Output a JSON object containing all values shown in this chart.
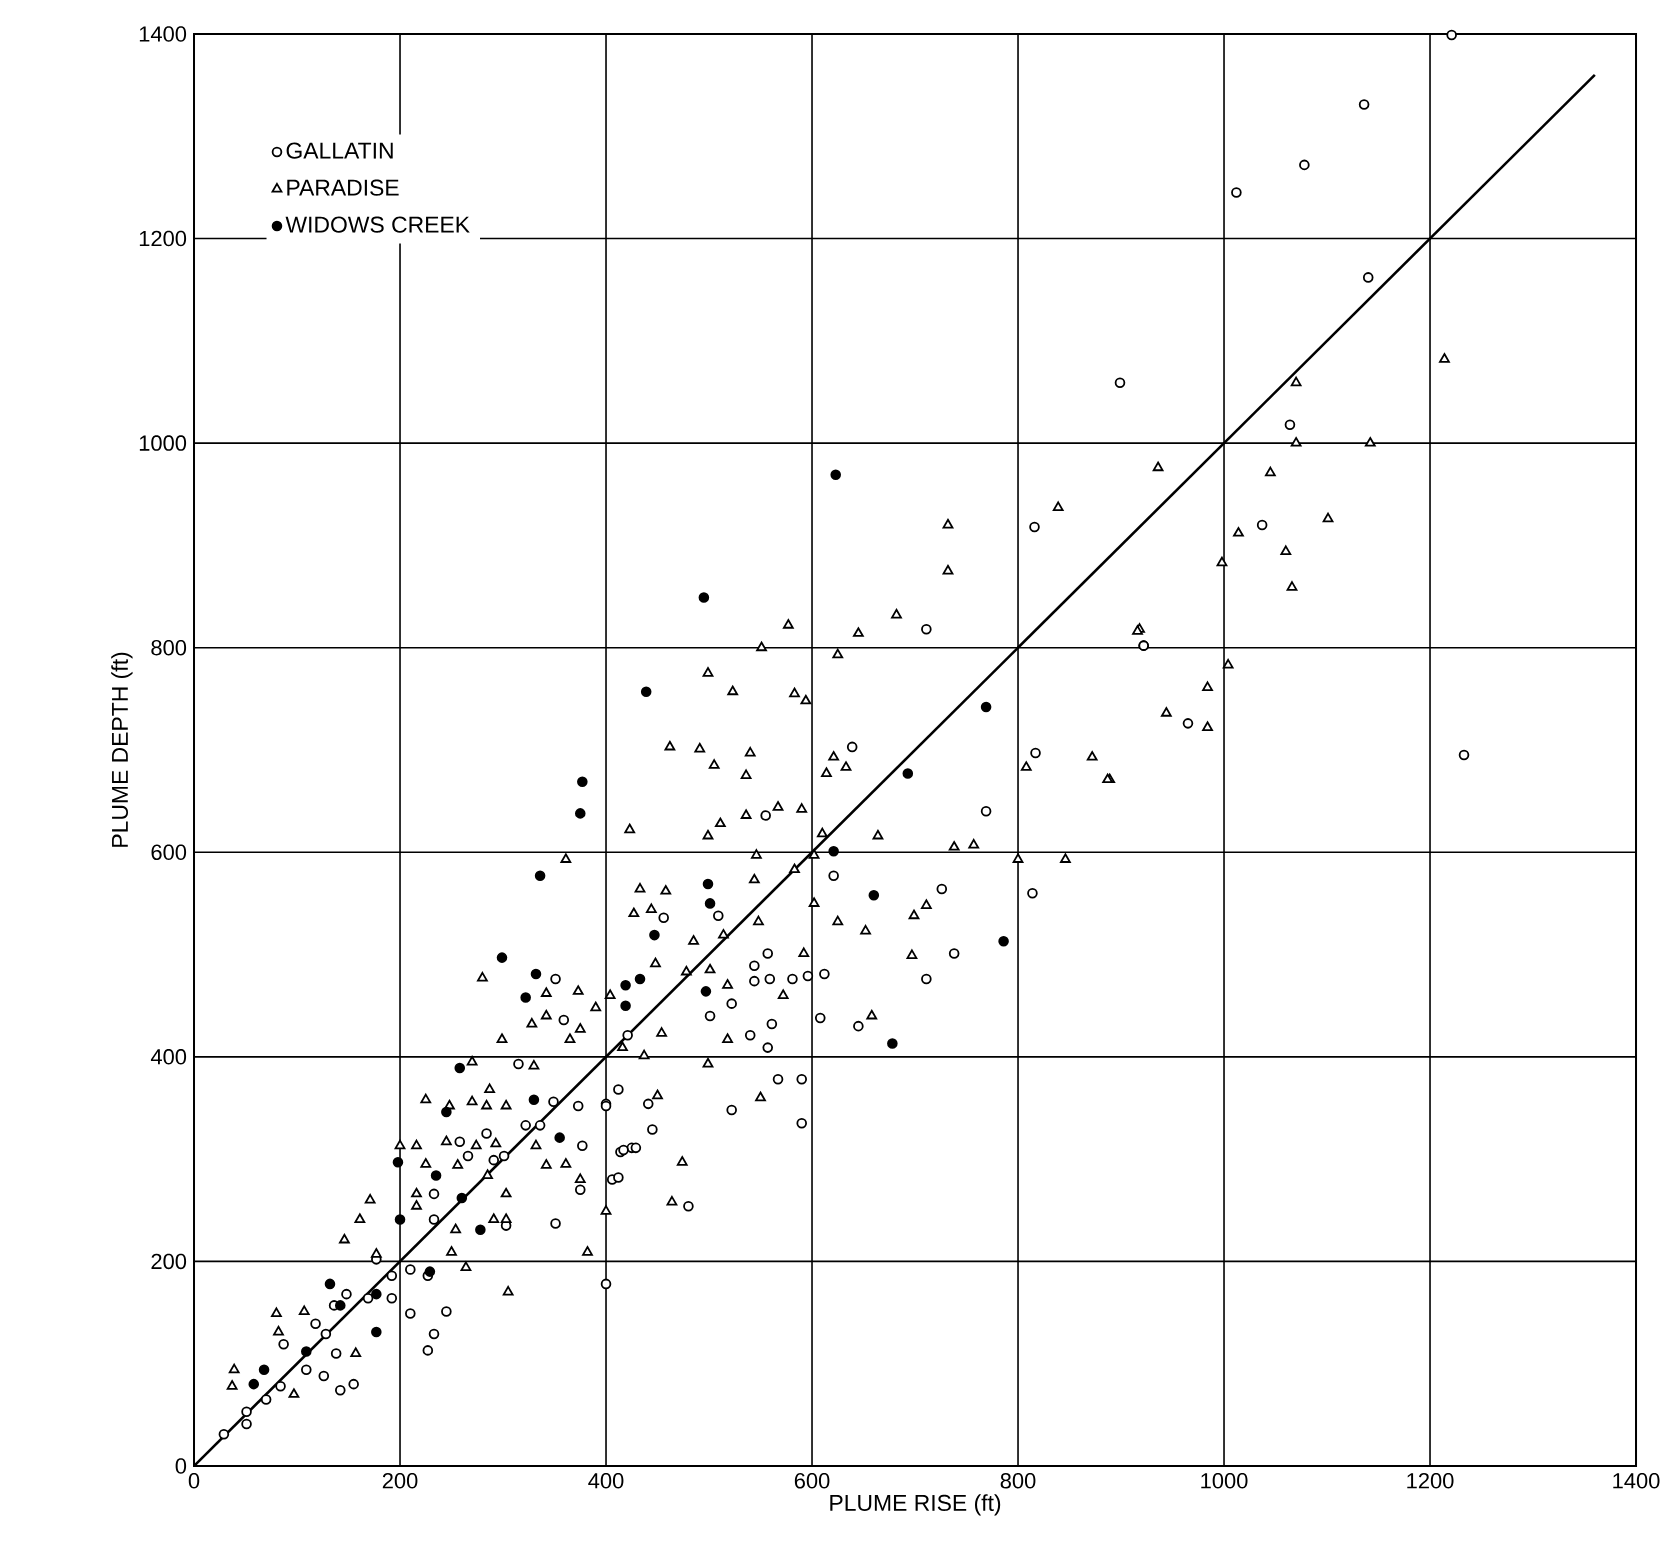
{
  "chart_data": {
    "type": "scatter",
    "xlabel": "PLUME RISE (ft)",
    "ylabel": "PLUME DEPTH (ft)",
    "xlim": [
      0,
      1400
    ],
    "ylim": [
      0,
      1400
    ],
    "xticks": [
      0,
      200,
      400,
      600,
      800,
      1000,
      1200,
      1400
    ],
    "yticks": [
      0,
      200,
      400,
      600,
      800,
      1000,
      1200,
      1400
    ],
    "grid": true,
    "legend": "top left",
    "series": [
      {
        "name": "GALLATIN",
        "color": "#ffffff",
        "marker": "circle",
        "x": [
          1221,
          1136,
          1078,
          1012,
          1140,
          899,
          1064,
          1037,
          922,
          965,
          1233,
          816,
          711,
          639,
          817,
          922,
          555,
          769,
          621,
          726,
          814,
          456,
          509,
          557,
          738,
          544,
          544,
          559,
          581,
          596,
          612,
          711,
          522,
          501,
          561,
          608,
          645,
          540,
          421,
          557,
          567,
          590,
          590,
          412,
          400,
          441,
          445,
          522,
          414,
          425,
          406,
          480,
          400,
          351,
          359,
          315,
          349,
          322,
          336,
          373,
          400,
          291,
          266,
          233,
          233,
          284,
          301,
          258,
          417,
          429,
          412,
          377,
          375,
          351,
          303,
          177,
          192,
          210,
          227,
          245,
          233,
          227,
          210,
          192,
          169,
          148,
          136,
          118,
          128,
          138,
          155,
          142,
          126,
          109,
          84,
          70,
          51,
          51,
          29,
          87
        ],
        "values": [
          1399,
          1331,
          1272,
          1245,
          1162,
          1059,
          1018,
          920,
          802,
          726,
          695,
          918,
          818,
          703,
          697,
          802,
          636,
          640,
          577,
          564,
          560,
          536,
          538,
          501,
          501,
          489,
          474,
          476,
          476,
          479,
          481,
          476,
          452,
          440,
          432,
          438,
          430,
          421,
          421,
          409,
          378,
          378,
          335,
          368,
          354,
          354,
          329,
          348,
          307,
          311,
          280,
          254,
          178,
          476,
          436,
          393,
          356,
          333,
          333,
          352,
          352,
          299,
          303,
          266,
          241,
          325,
          303,
          317,
          309,
          311,
          282,
          313,
          270,
          237,
          235,
          202,
          186,
          192,
          186,
          151,
          129,
          113,
          149,
          164,
          164,
          168,
          157,
          139,
          129,
          110,
          80,
          74,
          88,
          94,
          78,
          65,
          53,
          41,
          31,
          119
        ]
      },
      {
        "name": "PARADISE",
        "color": "#ffffff",
        "marker": "triangle",
        "x": [
          1070,
          1070,
          1142,
          1045,
          1214,
          1101,
          1014,
          1060,
          998,
          1066,
          936,
          918,
          1004,
          984,
          944,
          984,
          889,
          732,
          732,
          839,
          577,
          551,
          682,
          645,
          625,
          499,
          523,
          583,
          594,
          462,
          491,
          505,
          540,
          536,
          621,
          614,
          633,
          808,
          872,
          887,
          916,
          423,
          499,
          511,
          536,
          567,
          590,
          610,
          664,
          738,
          757,
          800,
          846,
          546,
          602,
          583,
          544,
          433,
          458,
          427,
          444,
          602,
          548,
          625,
          652,
          699,
          711,
          485,
          514,
          448,
          478,
          501,
          592,
          697,
          518,
          572,
          404,
          658,
          454,
          518,
          416,
          437,
          499,
          450,
          550,
          474,
          464,
          400,
          361,
          280,
          342,
          373,
          328,
          342,
          375,
          365,
          390,
          299,
          270,
          330,
          225,
          270,
          284,
          303,
          287,
          248,
          200,
          216,
          245,
          274,
          293,
          225,
          256,
          332,
          361,
          375,
          342,
          285,
          171,
          161,
          146,
          216,
          216,
          303,
          291,
          303,
          177,
          254,
          250,
          264,
          382,
          305,
          80,
          107,
          82,
          157,
          97,
          39,
          37
        ],
        "values": [
          1059,
          1000,
          1000,
          971,
          1082,
          926,
          912,
          894,
          883,
          859,
          976,
          818,
          783,
          761,
          736,
          722,
          671,
          920,
          875,
          937,
          822,
          800,
          832,
          814,
          793,
          775,
          757,
          755,
          748,
          703,
          701,
          685,
          697,
          675,
          693,
          677,
          683,
          683,
          693,
          671,
          816,
          622,
          616,
          628,
          636,
          644,
          642,
          618,
          616,
          605,
          607,
          593,
          593,
          597,
          597,
          583,
          573,
          564,
          562,
          540,
          544,
          550,
          532,
          532,
          523,
          538,
          548,
          513,
          519,
          491,
          483,
          485,
          501,
          499,
          470,
          460,
          460,
          440,
          423,
          417,
          409,
          401,
          393,
          362,
          360,
          297,
          258,
          249,
          593,
          477,
          462,
          464,
          432,
          440,
          427,
          417,
          448,
          417,
          395,
          391,
          358,
          356,
          352,
          352,
          368,
          352,
          313,
          313,
          317,
          313,
          315,
          295,
          294,
          313,
          295,
          280,
          294,
          284,
          260,
          241,
          221,
          266,
          254,
          266,
          241,
          241,
          207,
          231,
          209,
          194,
          209,
          170,
          149,
          151,
          131,
          110,
          70,
          94,
          78
        ]
      },
      {
        "name": "WIDOWS CREEK",
        "color": "#000000",
        "marker": "circle",
        "x": [
          623,
          495,
          439,
          769,
          693,
          499,
          501,
          447,
          419,
          433,
          419,
          497,
          621,
          660,
          786,
          678,
          377,
          375,
          336,
          299,
          332,
          322,
          258,
          245,
          330,
          355,
          198,
          235,
          260,
          278,
          200,
          229,
          132,
          142,
          177,
          177,
          68,
          58,
          109
        ],
        "values": [
          969,
          849,
          757,
          742,
          677,
          569,
          550,
          519,
          470,
          476,
          450,
          464,
          601,
          558,
          513,
          413,
          669,
          638,
          577,
          497,
          481,
          458,
          389,
          346,
          358,
          321,
          297,
          284,
          262,
          231,
          241,
          190,
          178,
          157,
          168,
          131,
          94,
          80,
          112
        ]
      },
      {
        "type": "line",
        "color": "#000000",
        "x": [
          0,
          1360
        ],
        "values": [
          0,
          1360
        ]
      }
    ]
  }
}
